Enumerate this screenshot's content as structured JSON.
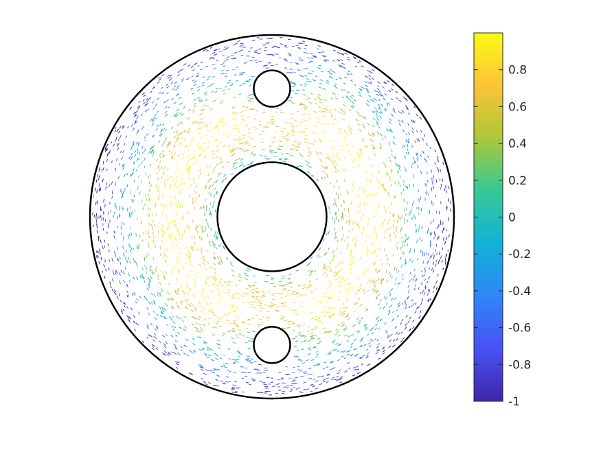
{
  "chart_data": {
    "type": "quiver",
    "title": "",
    "xlabel": "",
    "ylabel": "",
    "domain": {
      "outer_circle": {
        "cx": 0,
        "cy": 0,
        "r": 1.0
      },
      "holes": [
        {
          "name": "center-hole",
          "cx": 0,
          "cy": 0,
          "r": 0.3
        },
        {
          "name": "top-hole",
          "cx": 0,
          "cy": 0.705,
          "r": 0.1
        },
        {
          "name": "bottom-hole",
          "cx": 0,
          "cy": -0.705,
          "r": 0.1
        }
      ]
    },
    "field": {
      "description_of_values": "color = scalar value in [-1, 1]; arrows follow concentric (azimuthal) flow",
      "value_at_mid_radius": 1.0,
      "value_at_outer_edge": -1.0,
      "arrow_direction": "azimuthal"
    },
    "colorbar": {
      "colormap": "parula",
      "clim": [
        -1,
        1
      ],
      "ticks": [
        -1,
        -0.8,
        -0.6,
        -0.4,
        -0.2,
        0,
        0.2,
        0.4,
        0.6,
        0.8
      ],
      "tick_labels": [
        "-1",
        "-0.8",
        "-0.6",
        "-0.4",
        "-0.2",
        "0",
        "0.2",
        "0.4",
        "0.6",
        "0.8"
      ],
      "placement": "right"
    },
    "axes_visible": false,
    "grid": false
  }
}
